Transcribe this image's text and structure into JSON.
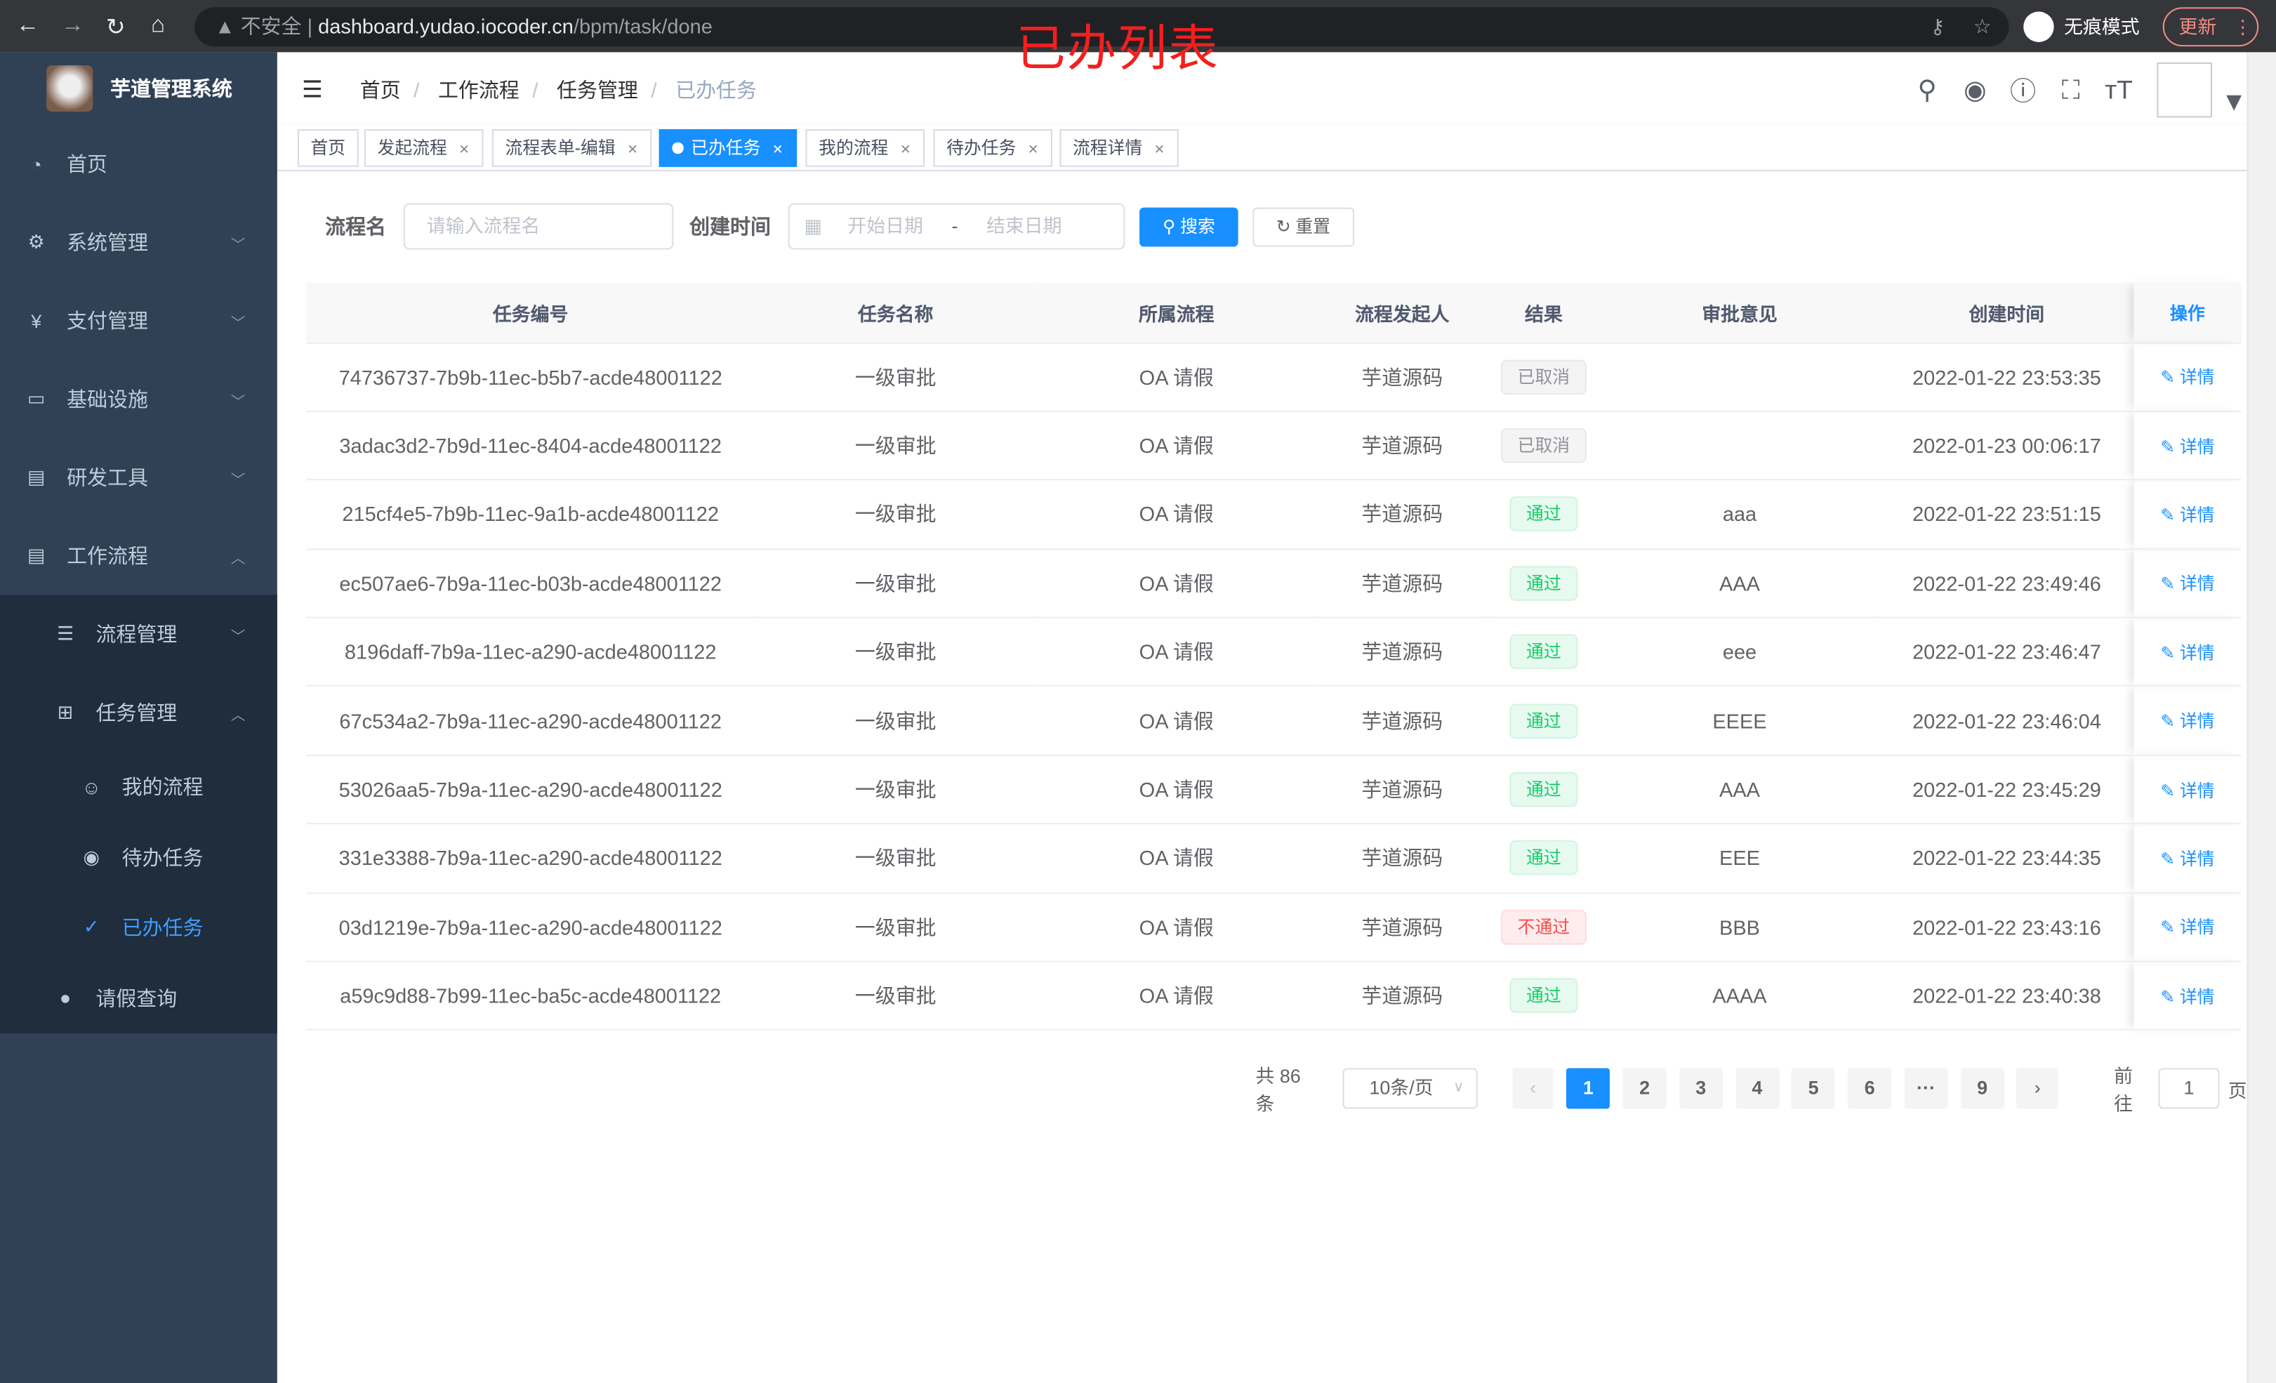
{
  "annotation": "已办列表",
  "browser": {
    "security": "不安全",
    "host": "dashboard.yudao.iocoder.cn",
    "path": "/bpm/task/done",
    "incognito": "无痕模式",
    "update": "更新"
  },
  "sidebar": {
    "title": "芋道管理系统",
    "items": [
      {
        "label": "首页",
        "icon": "dashboard-icon"
      },
      {
        "label": "系统管理",
        "icon": "gear-icon"
      },
      {
        "label": "支付管理",
        "icon": "yen-icon"
      },
      {
        "label": "基础设施",
        "icon": "monitor-icon"
      },
      {
        "label": "研发工具",
        "icon": "toolbox-icon"
      },
      {
        "label": "工作流程",
        "icon": "toolbox-icon"
      }
    ],
    "sub": [
      {
        "label": "流程管理",
        "icon": "list-icon"
      },
      {
        "label": "任务管理",
        "icon": "tree-icon"
      }
    ],
    "sub2": [
      {
        "label": "我的流程",
        "icon": "people-icon"
      },
      {
        "label": "待办任务",
        "icon": "eye-icon"
      },
      {
        "label": "已办任务",
        "icon": "checked-icon"
      }
    ],
    "leave": {
      "label": "请假查询",
      "icon": "user-icon"
    }
  },
  "breadcrumb": [
    "首页",
    "工作流程",
    "任务管理",
    "已办任务"
  ],
  "tags": [
    "首页",
    "发起流程",
    "流程表单-编辑",
    "已办任务",
    "我的流程",
    "待办任务",
    "流程详情"
  ],
  "form": {
    "name_label": "流程名",
    "name_placeholder": "请输入流程名",
    "time_label": "创建时间",
    "start_placeholder": "开始日期",
    "sep": "-",
    "end_placeholder": "结束日期",
    "search": "搜索",
    "reset": "重置"
  },
  "table": {
    "headers": [
      "任务编号",
      "任务名称",
      "所属流程",
      "流程发起人",
      "结果",
      "审批意见",
      "创建时间",
      "操作"
    ],
    "rows": [
      [
        "74736737-7b9b-11ec-b5b7-acde48001122",
        "一级审批",
        "OA 请假",
        "芋道源码",
        "已取消",
        "",
        "2022-01-22 23:53:35",
        "详情"
      ],
      [
        "3adac3d2-7b9d-11ec-8404-acde48001122",
        "一级审批",
        "OA 请假",
        "芋道源码",
        "已取消",
        "",
        "2022-01-23 00:06:17",
        "详情"
      ],
      [
        "215cf4e5-7b9b-11ec-9a1b-acde48001122",
        "一级审批",
        "OA 请假",
        "芋道源码",
        "通过",
        "aaa",
        "2022-01-22 23:51:15",
        "详情"
      ],
      [
        "ec507ae6-7b9a-11ec-b03b-acde48001122",
        "一级审批",
        "OA 请假",
        "芋道源码",
        "通过",
        "AAA",
        "2022-01-22 23:49:46",
        "详情"
      ],
      [
        "8196daff-7b9a-11ec-a290-acde48001122",
        "一级审批",
        "OA 请假",
        "芋道源码",
        "通过",
        "eee",
        "2022-01-22 23:46:47",
        "详情"
      ],
      [
        "67c534a2-7b9a-11ec-a290-acde48001122",
        "一级审批",
        "OA 请假",
        "芋道源码",
        "通过",
        "EEEE",
        "2022-01-22 23:46:04",
        "详情"
      ],
      [
        "53026aa5-7b9a-11ec-a290-acde48001122",
        "一级审批",
        "OA 请假",
        "芋道源码",
        "通过",
        "AAA",
        "2022-01-22 23:45:29",
        "详情"
      ],
      [
        "331e3388-7b9a-11ec-a290-acde48001122",
        "一级审批",
        "OA 请假",
        "芋道源码",
        "通过",
        "EEE",
        "2022-01-22 23:44:35",
        "详情"
      ],
      [
        "03d1219e-7b9a-11ec-a290-acde48001122",
        "一级审批",
        "OA 请假",
        "芋道源码",
        "不通过",
        "BBB",
        "2022-01-22 23:43:16",
        "详情"
      ],
      [
        "a59c9d88-7b99-11ec-ba5c-acde48001122",
        "一级审批",
        "OA 请假",
        "芋道源码",
        "通过",
        "AAAA",
        "2022-01-22 23:40:38",
        "详情"
      ]
    ]
  },
  "pager": {
    "total": "共 86 条",
    "size": "10条/页",
    "pages": [
      "1",
      "2",
      "3",
      "4",
      "5",
      "6",
      "···",
      "9"
    ],
    "current": "1",
    "goto": "前往",
    "goto_value": "1",
    "page_unit": "页"
  },
  "colors": {
    "primary": "#1890ff",
    "sidebar": "#304156",
    "annotation": "#f21f1f"
  }
}
